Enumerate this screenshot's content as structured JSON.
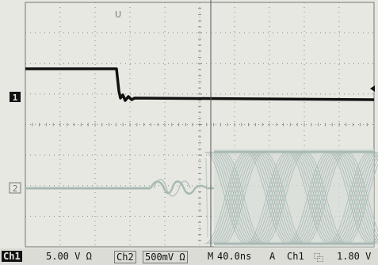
{
  "scope": {
    "ch1_marker": "1",
    "ch2_marker": "2",
    "trigger_marker": "U"
  },
  "status_bar": {
    "ch1_label": "Ch1",
    "ch1_scale": "5.00 V Ω",
    "ch2_label": "Ch2",
    "ch2_scale": "500mV Ω",
    "time_label": "M",
    "time_scale": "40.0ns",
    "trigger_mode": "A",
    "trigger_source": "Ch1",
    "trigger_slope": "⿻",
    "trigger_level": "1.80 V"
  },
  "colors": {
    "screen": "#e8e8e2",
    "grid": "#8a8a86",
    "ch1": "#111111",
    "ch2": "#a8b9b4"
  }
}
